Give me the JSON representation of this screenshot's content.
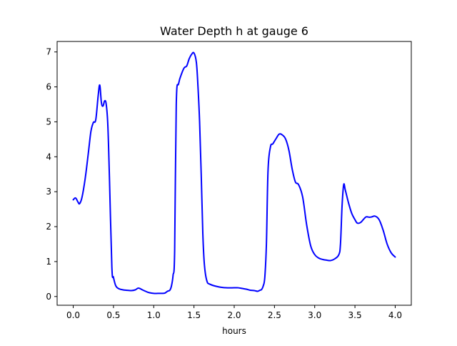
{
  "chart_data": {
    "type": "line",
    "title": "Water Depth h at gauge 6",
    "xlabel": "hours",
    "ylabel": "",
    "xlim": [
      -0.2,
      4.2
    ],
    "ylim": [
      -0.25,
      7.3
    ],
    "x_ticks": [
      0.0,
      0.5,
      1.0,
      1.5,
      2.0,
      2.5,
      3.0,
      3.5,
      4.0
    ],
    "x_tick_labels": [
      "0.0",
      "0.5",
      "1.0",
      "1.5",
      "2.0",
      "2.5",
      "3.0",
      "3.5",
      "4.0"
    ],
    "y_ticks": [
      0,
      1,
      2,
      3,
      4,
      5,
      6,
      7
    ],
    "y_tick_labels": [
      "0",
      "1",
      "2",
      "3",
      "4",
      "5",
      "6",
      "7"
    ],
    "grid": false,
    "line_color": "#0000ff",
    "series": [
      {
        "x": [
          0.0,
          0.03,
          0.06,
          0.08,
          0.11,
          0.15,
          0.19,
          0.22,
          0.25,
          0.28,
          0.31,
          0.33,
          0.35,
          0.37,
          0.39,
          0.41,
          0.43,
          0.45,
          0.48,
          0.5,
          0.53,
          0.57,
          0.62,
          0.66,
          0.72,
          0.77,
          0.81,
          0.86,
          0.93,
          1.0,
          1.05,
          1.1,
          1.14,
          1.17,
          1.2,
          1.22,
          1.24,
          1.26,
          1.28,
          1.31,
          1.35,
          1.38,
          1.41,
          1.44,
          1.47,
          1.5,
          1.53,
          1.55,
          1.57,
          1.59,
          1.61,
          1.63,
          1.66,
          1.7,
          1.8,
          1.9,
          2.0,
          2.05,
          2.1,
          2.15,
          2.2,
          2.25,
          2.29,
          2.32,
          2.34,
          2.36,
          2.38,
          2.4,
          2.42,
          2.45,
          2.48,
          2.52,
          2.56,
          2.6,
          2.64,
          2.68,
          2.72,
          2.76,
          2.8,
          2.85,
          2.9,
          2.95,
          3.0,
          3.05,
          3.1,
          3.15,
          3.2,
          3.25,
          3.3,
          3.32,
          3.34,
          3.36,
          3.38,
          3.42,
          3.46,
          3.5,
          3.53,
          3.57,
          3.61,
          3.64,
          3.68,
          3.71,
          3.75,
          3.8,
          3.85,
          3.9,
          3.95,
          4.0
        ],
        "y": [
          2.77,
          2.82,
          2.7,
          2.66,
          2.85,
          3.4,
          4.15,
          4.73,
          4.98,
          5.06,
          5.75,
          6.05,
          5.55,
          5.45,
          5.6,
          5.5,
          4.9,
          3.4,
          0.85,
          0.55,
          0.3,
          0.22,
          0.19,
          0.18,
          0.17,
          0.19,
          0.24,
          0.19,
          0.12,
          0.09,
          0.09,
          0.09,
          0.1,
          0.15,
          0.18,
          0.3,
          0.6,
          1.3,
          5.5,
          6.1,
          6.4,
          6.55,
          6.6,
          6.8,
          6.93,
          6.97,
          6.7,
          6.0,
          5.0,
          3.5,
          1.8,
          0.9,
          0.45,
          0.35,
          0.28,
          0.25,
          0.25,
          0.25,
          0.23,
          0.21,
          0.18,
          0.17,
          0.15,
          0.18,
          0.2,
          0.3,
          0.55,
          1.5,
          3.6,
          4.28,
          4.37,
          4.52,
          4.65,
          4.62,
          4.5,
          4.18,
          3.65,
          3.28,
          3.2,
          2.85,
          2.05,
          1.45,
          1.2,
          1.1,
          1.06,
          1.04,
          1.03,
          1.08,
          1.2,
          1.5,
          2.6,
          3.2,
          3.05,
          2.68,
          2.38,
          2.2,
          2.1,
          2.12,
          2.22,
          2.28,
          2.27,
          2.28,
          2.3,
          2.2,
          1.9,
          1.5,
          1.25,
          1.13
        ]
      }
    ]
  }
}
